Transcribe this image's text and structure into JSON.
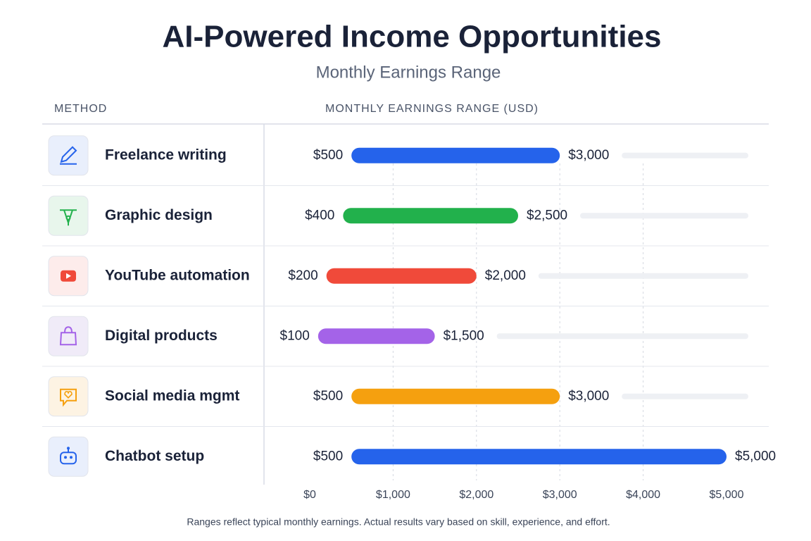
{
  "chart_data": {
    "type": "range_bar",
    "title": "AI-Powered Income Opportunities",
    "subtitle": "Monthly Earnings Range",
    "category_header": "METHOD",
    "x_label": "MONTHLY EARNINGS RANGE (USD)",
    "categories": [
      "Freelance writing",
      "Graphic design",
      "YouTube automation",
      "Digital products",
      "Social media mgmt",
      "Chatbot setup"
    ],
    "values": [
      [
        500,
        3000
      ],
      [
        400,
        2500
      ],
      [
        200,
        2000
      ],
      [
        100,
        1500
      ],
      [
        500,
        3000
      ],
      [
        500,
        5000
      ]
    ],
    "value_labels": [
      [
        "$500",
        "$3,000"
      ],
      [
        "$400",
        "$2,500"
      ],
      [
        "$200",
        "$2,000"
      ],
      [
        "$100",
        "$1,500"
      ],
      [
        "$500",
        "$3,000"
      ],
      [
        "$500",
        "$5,000"
      ]
    ],
    "colors": [
      "#2563eb",
      "#22b14c",
      "#f04a3a",
      "#a463e8",
      "#f5a00f",
      "#2563eb"
    ],
    "xlim": [
      0,
      5000
    ],
    "xticks": [
      {
        "value": 0,
        "label": "$0"
      },
      {
        "value": 1000,
        "label": "$1,000"
      },
      {
        "value": 2000,
        "label": "$2,000"
      },
      {
        "value": 3000,
        "label": "$3,000"
      },
      {
        "value": 4000,
        "label": "$4,000"
      },
      {
        "value": 5000,
        "label": "$5,000"
      }
    ],
    "grid": true,
    "footnote": "Ranges reflect typical monthly earnings. Actual results vary based on skill, experience, and effort."
  }
}
